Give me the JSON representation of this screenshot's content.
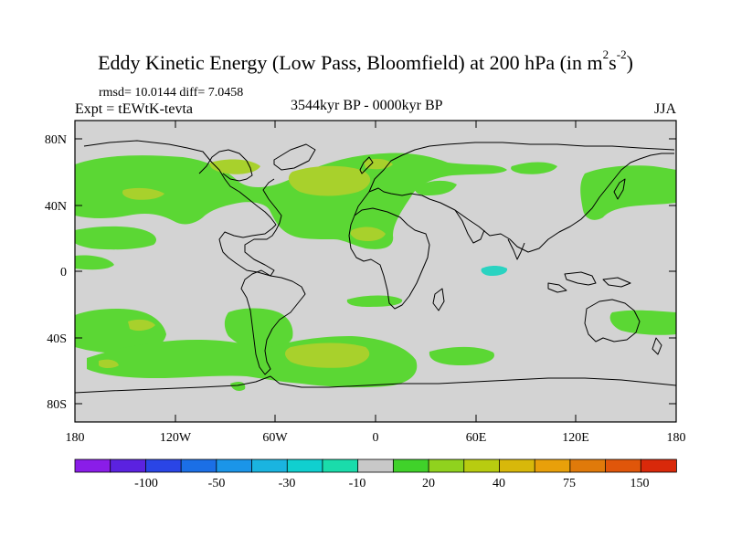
{
  "title": {
    "main": "Eddy Kinetic Energy (Low Pass, Bloomfield) at 200 hPa (in m",
    "sup1": "2",
    "unit_mid": "s",
    "sup2": "-2",
    "close": ")"
  },
  "stats": {
    "rmsd_line": "rmsd= 10.0144 diff= 7.0458"
  },
  "experiment": {
    "label": "Expt = tEWtK-tevta"
  },
  "period": {
    "label": "3544kyr BP - 0000kyr BP"
  },
  "season": {
    "label": "JJA"
  },
  "axes": {
    "y_ticks": [
      "80N",
      "40N",
      "0",
      "40S",
      "80S"
    ],
    "x_ticks": [
      "180",
      "120W",
      "60W",
      "0",
      "60E",
      "120E",
      "180"
    ]
  },
  "colorbar": {
    "labels": [
      "-100",
      "-50",
      "-30",
      "-10",
      "20",
      "40",
      "75",
      "150"
    ],
    "colors": [
      "#8a1de8",
      "#5b22e0",
      "#2a45e6",
      "#1b6fe6",
      "#1b95e8",
      "#1ab4e0",
      "#10cfcf",
      "#1adcab",
      "#c8c8c8",
      "#40d22a",
      "#90d21e",
      "#b8cc10",
      "#d8b80a",
      "#e8a00a",
      "#e07a0a",
      "#e0560a",
      "#d9290a"
    ]
  },
  "legend_colors": {
    "background": "#d3d3d3",
    "positive_low": "#5bd734",
    "positive_mid": "#a8d12c",
    "negative_low": "#2ad3c1",
    "coast": "#000000"
  }
}
